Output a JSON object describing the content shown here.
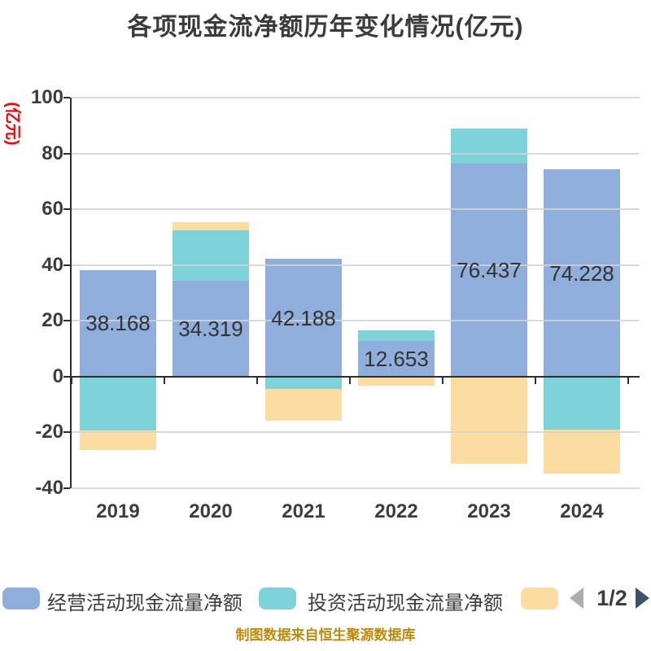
{
  "title": "各项现金流净额历年变化情况(亿元)",
  "y_axis": {
    "unit": "(亿元)",
    "ticks": [
      100,
      80,
      60,
      40,
      20,
      0,
      -20,
      -40
    ]
  },
  "chart_data": {
    "type": "bar",
    "stacked": true,
    "title": "各项现金流净额历年变化情况(亿元)",
    "categories": [
      "2019",
      "2020",
      "2021",
      "2022",
      "2023",
      "2024"
    ],
    "series": [
      {
        "name": "经营活动现金流量净额",
        "color": "#8FAEDC",
        "values": [
          38.168,
          34.319,
          42.188,
          12.653,
          76.437,
          74.228
        ],
        "labels": [
          "38.168",
          "34.319",
          "42.188",
          "12.653",
          "76.437",
          "74.228"
        ]
      },
      {
        "name": "投资活动现金流量净额",
        "color": "#7ED3DB",
        "values": [
          -19.4,
          18.1,
          -4.5,
          3.9,
          12.6,
          -19.1
        ],
        "estimated": true
      },
      {
        "name": "",
        "color": "#FCDCA0",
        "values": [
          -7.0,
          3.1,
          -11.2,
          -3.3,
          -31.3,
          -15.6
        ],
        "estimated": true
      }
    ],
    "ylim": [
      -40,
      100
    ],
    "grid": true,
    "legend_position": "bottom"
  },
  "legend": {
    "items": [
      {
        "label": "经营活动现金流量净额",
        "color": "#8FAEDC"
      },
      {
        "label": "投资活动现金流量净额",
        "color": "#7ED3DB"
      },
      {
        "label": "",
        "color": "#FCDCA0"
      }
    ]
  },
  "pager": {
    "text": "1/2"
  },
  "footer": {
    "note": "制图数据来自恒生聚源数据库"
  },
  "colors": {
    "grid": "#d4d4d4",
    "axis": "#2f2f2f",
    "text": "#3d3d3d",
    "unit_red": "#ff0000",
    "footer_gold": "#be8a0b",
    "pager_left_arrow": "#adadad",
    "pager_right_arrow": "#3c536b"
  }
}
